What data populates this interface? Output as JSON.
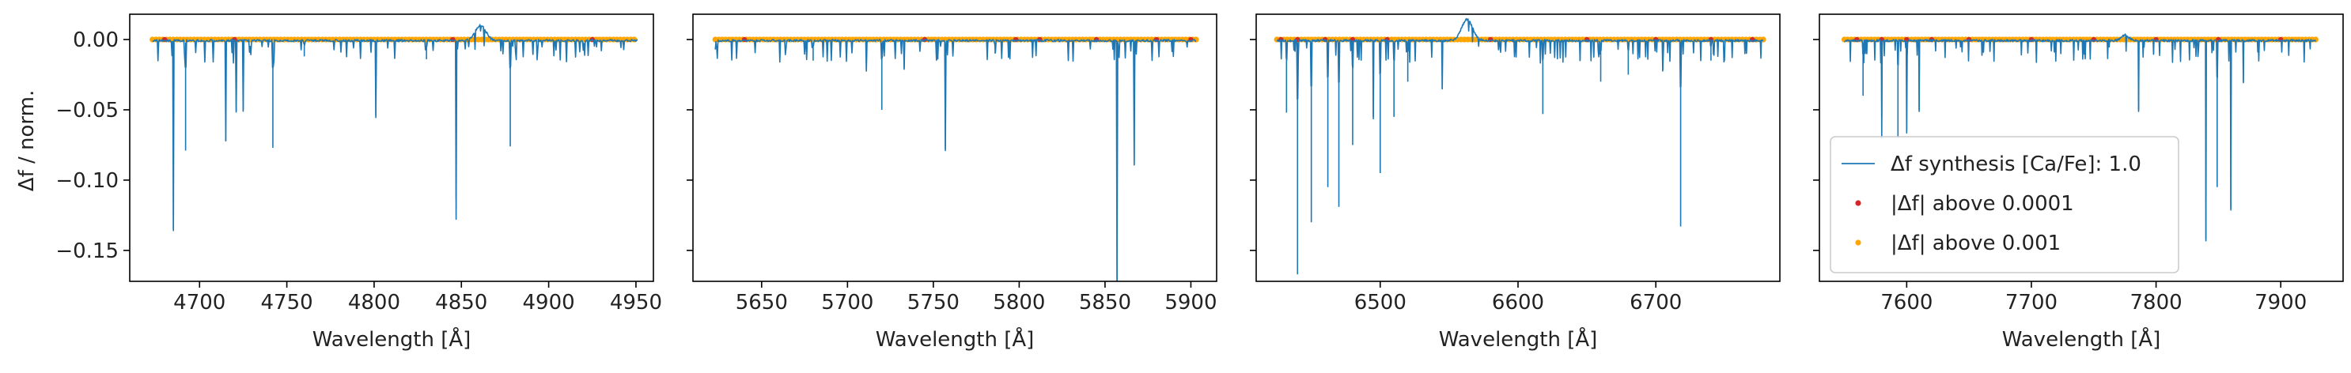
{
  "chart_data": [
    {
      "type": "line",
      "panel": 1,
      "xlabel": "Wavelength [Å]",
      "ylabel": "Δf / norm.",
      "xlim": [
        4660,
        4960
      ],
      "ylim": [
        -0.172,
        0.018
      ],
      "xticks": [
        4700,
        4750,
        4800,
        4850,
        4900,
        4950
      ],
      "yticks": [
        0.0,
        -0.05,
        -0.1,
        -0.15
      ],
      "ytick_labels": [
        "0.00",
        "−0.05",
        "−0.10",
        "−0.15"
      ],
      "series": [
        {
          "name": "Δf synthesis [Ca/Fe]: 1.0",
          "color": "#1f77b4",
          "range": [
            4673,
            4951
          ],
          "peaks": [
            {
              "x": 4861,
              "y": 0.011,
              "w": 3.0
            }
          ],
          "lines": [
            {
              "x": 4685,
              "y": -0.135
            },
            {
              "x": 4692,
              "y": -0.079
            },
            {
              "x": 4703,
              "y": -0.015
            },
            {
              "x": 4715,
              "y": -0.072
            },
            {
              "x": 4721,
              "y": -0.051
            },
            {
              "x": 4725,
              "y": -0.05
            },
            {
              "x": 4742,
              "y": -0.077
            },
            {
              "x": 4760,
              "y": -0.012
            },
            {
              "x": 4801,
              "y": -0.054
            },
            {
              "x": 4830,
              "y": -0.014
            },
            {
              "x": 4847,
              "y": -0.113
            },
            {
              "x": 4878,
              "y": -0.076
            },
            {
              "x": 4891,
              "y": -0.01
            },
            {
              "x": 4920,
              "y": -0.008
            }
          ]
        },
        {
          "name": "|Δf| above 0.0001",
          "color": "#d62728",
          "marker": "dot",
          "points": [
            4680,
            4720,
            4845,
            4925
          ]
        },
        {
          "name": "|Δf| above 0.001",
          "color": "#ffa500",
          "marker": "dot",
          "span": [
            4673,
            4951
          ]
        }
      ]
    },
    {
      "type": "line",
      "panel": 2,
      "xlabel": "Wavelength [Å]",
      "xlim": [
        5610,
        5915
      ],
      "ylim": [
        -0.172,
        0.018
      ],
      "xticks": [
        5650,
        5700,
        5750,
        5800,
        5850,
        5900
      ],
      "series": [
        {
          "name": "Δf synthesis [Ca/Fe]: 1.0",
          "color": "#1f77b4",
          "range": [
            5623,
            5903
          ],
          "peaks": [],
          "lines": [
            {
              "x": 5680,
              "y": -0.015
            },
            {
              "x": 5711,
              "y": -0.022
            },
            {
              "x": 5720,
              "y": -0.05
            },
            {
              "x": 5733,
              "y": -0.02
            },
            {
              "x": 5757,
              "y": -0.078
            },
            {
              "x": 5786,
              "y": -0.01
            },
            {
              "x": 5857,
              "y": -0.172
            },
            {
              "x": 5867,
              "y": -0.088
            }
          ]
        },
        {
          "name": "|Δf| above 0.0001",
          "color": "#d62728",
          "marker": "dot",
          "points": [
            5640,
            5745,
            5798,
            5812,
            5845,
            5880,
            5900
          ]
        },
        {
          "name": "|Δf| above 0.001",
          "color": "#ffa500",
          "marker": "dot",
          "span": [
            5623,
            5903
          ]
        }
      ]
    },
    {
      "type": "line",
      "panel": 3,
      "xlabel": "Wavelength [Å]",
      "xlim": [
        6410,
        6790
      ],
      "ylim": [
        -0.172,
        0.018
      ],
      "xticks": [
        6500,
        6600,
        6700
      ],
      "series": [
        {
          "name": "Δf synthesis [Ca/Fe]: 1.0",
          "color": "#1f77b4",
          "range": [
            6425,
            6778
          ],
          "peaks": [
            {
              "x": 6563,
              "y": 0.015,
              "w": 4.0
            }
          ],
          "lines": [
            {
              "x": 6432,
              "y": -0.052
            },
            {
              "x": 6440,
              "y": -0.167
            },
            {
              "x": 6450,
              "y": -0.13
            },
            {
              "x": 6462,
              "y": -0.105
            },
            {
              "x": 6470,
              "y": -0.119
            },
            {
              "x": 6480,
              "y": -0.075
            },
            {
              "x": 6495,
              "y": -0.055
            },
            {
              "x": 6500,
              "y": -0.095
            },
            {
              "x": 6510,
              "y": -0.055
            },
            {
              "x": 6520,
              "y": -0.03
            },
            {
              "x": 6545,
              "y": -0.035
            },
            {
              "x": 6618,
              "y": -0.053
            },
            {
              "x": 6645,
              "y": -0.015
            },
            {
              "x": 6660,
              "y": -0.03
            },
            {
              "x": 6680,
              "y": -0.025
            },
            {
              "x": 6705,
              "y": -0.022
            },
            {
              "x": 6718,
              "y": -0.133
            },
            {
              "x": 6740,
              "y": -0.015
            }
          ]
        },
        {
          "name": "|Δf| above 0.0001",
          "color": "#d62728",
          "marker": "dot",
          "points": [
            6428,
            6440,
            6460,
            6480,
            6505,
            6580,
            6650,
            6700,
            6740,
            6770
          ]
        },
        {
          "name": "|Δf| above 0.001",
          "color": "#ffa500",
          "marker": "dot",
          "span": [
            6425,
            6778
          ]
        }
      ]
    },
    {
      "type": "line",
      "panel": 4,
      "xlabel": "Wavelength [Å]",
      "xlim": [
        7530,
        7950
      ],
      "ylim": [
        -0.172,
        0.018
      ],
      "xticks": [
        7600,
        7700,
        7800,
        7900
      ],
      "legend": {
        "placement": "lower-left",
        "entries": [
          {
            "label": "Δf synthesis [Ca/Fe]: 1.0",
            "kind": "line",
            "color": "#1f77b4"
          },
          {
            "label": "|Δf| above 0.0001",
            "kind": "dot",
            "color": "#d62728"
          },
          {
            "label": "|Δf| above 0.001",
            "kind": "dot",
            "color": "#ffa500"
          }
        ]
      },
      "series": [
        {
          "name": "Δf synthesis [Ca/Fe]: 1.0",
          "color": "#1f77b4",
          "range": [
            7550,
            7928
          ],
          "peaks": [
            {
              "x": 7775,
              "y": 0.004,
              "w": 3.0
            }
          ],
          "lines": [
            {
              "x": 7565,
              "y": -0.04
            },
            {
              "x": 7580,
              "y": -0.055
            },
            {
              "x": 7593,
              "y": -0.07
            },
            {
              "x": 7600,
              "y": -0.065
            },
            {
              "x": 7610,
              "y": -0.05
            },
            {
              "x": 7786,
              "y": -0.05
            },
            {
              "x": 7798,
              "y": -0.01
            },
            {
              "x": 7840,
              "y": -0.142
            },
            {
              "x": 7849,
              "y": -0.105
            },
            {
              "x": 7860,
              "y": -0.12
            },
            {
              "x": 7870,
              "y": -0.03
            }
          ]
        },
        {
          "name": "|Δf| above 0.0001",
          "color": "#d62728",
          "marker": "dot",
          "points": [
            7560,
            7580,
            7600,
            7620,
            7650,
            7700,
            7750,
            7800,
            7850,
            7900
          ]
        },
        {
          "name": "|Δf| above 0.001",
          "color": "#ffa500",
          "marker": "dot",
          "span": [
            7550,
            7928
          ]
        }
      ]
    }
  ]
}
